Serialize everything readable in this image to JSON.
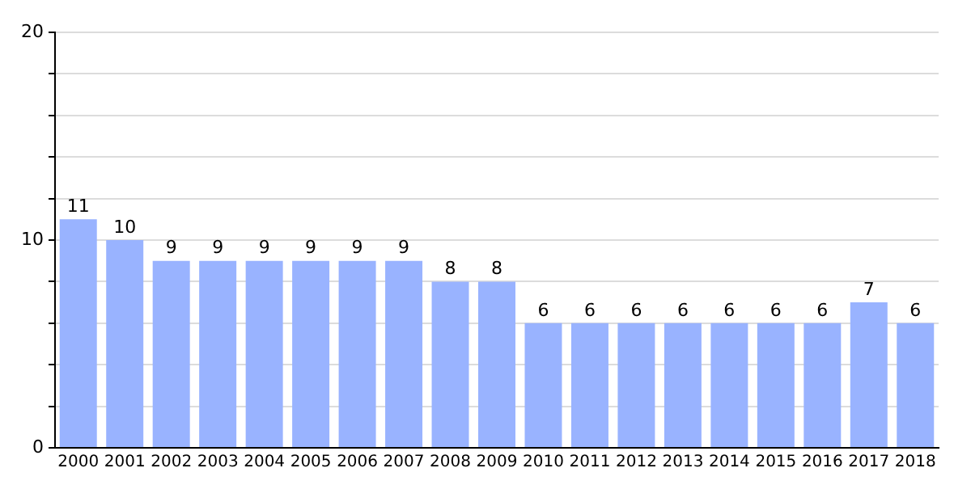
{
  "chart_data": {
    "type": "bar",
    "categories": [
      "2000",
      "2001",
      "2002",
      "2003",
      "2004",
      "2005",
      "2006",
      "2007",
      "2008",
      "2009",
      "2010",
      "2011",
      "2012",
      "2013",
      "2014",
      "2015",
      "2016",
      "2017",
      "2018"
    ],
    "values": [
      11,
      10,
      9,
      9,
      9,
      9,
      9,
      9,
      8,
      8,
      6,
      6,
      6,
      6,
      6,
      6,
      6,
      7,
      6
    ],
    "color": "#99b3ff",
    "ylim": [
      0,
      20
    ],
    "yticks": [
      0,
      {
        "value": 2,
        "label": null
      },
      {
        "value": 4,
        "label": null
      },
      {
        "value": 6,
        "label": null
      },
      {
        "value": 8,
        "label": null
      },
      10,
      {
        "value": 12,
        "label": null
      },
      {
        "value": 14,
        "label": null
      },
      {
        "value": 16,
        "label": null
      },
      {
        "value": 18,
        "label": null
      },
      20
    ],
    "grid": "y",
    "data_labels": true
  }
}
